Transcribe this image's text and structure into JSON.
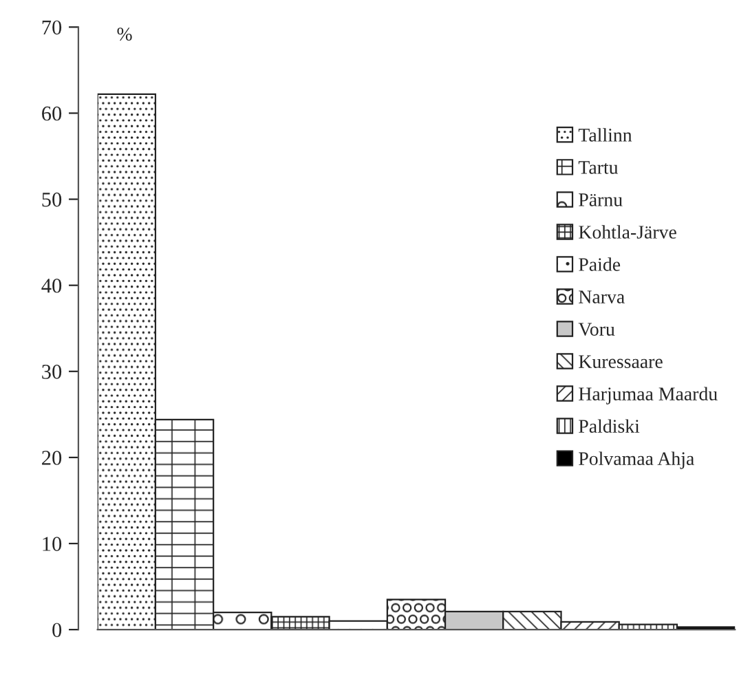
{
  "chart_data": {
    "type": "bar",
    "ylabel": "%",
    "categories": [
      null,
      null,
      null,
      null,
      null,
      null,
      null,
      null,
      null,
      null,
      null
    ],
    "series": [
      {
        "name": "Tallinn",
        "color": "#222222",
        "values": [
          62.2,
          null,
          null,
          null,
          null,
          null,
          null,
          null,
          null,
          null,
          null
        ]
      },
      {
        "name": "Tartu",
        "color": "#222222",
        "values": [
          null,
          24.4,
          null,
          null,
          null,
          null,
          null,
          null,
          null,
          null,
          null
        ]
      },
      {
        "name": "Pärnu",
        "color": "#222222",
        "values": [
          null,
          null,
          2.0,
          null,
          null,
          null,
          null,
          null,
          null,
          null,
          null
        ]
      },
      {
        "name": "Kohtla-Järve",
        "color": "#222222",
        "values": [
          null,
          null,
          null,
          1.5,
          null,
          null,
          null,
          null,
          null,
          null,
          null
        ]
      },
      {
        "name": "Paide",
        "color": "#222222",
        "values": [
          null,
          null,
          null,
          null,
          1.0,
          null,
          null,
          null,
          null,
          null,
          null
        ]
      },
      {
        "name": "Narva",
        "color": "#222222",
        "values": [
          null,
          null,
          null,
          null,
          null,
          3.5,
          null,
          null,
          null,
          null,
          null
        ]
      },
      {
        "name": "Voru",
        "color": "#c8c8c8",
        "values": [
          null,
          null,
          null,
          null,
          null,
          null,
          2.1,
          null,
          null,
          null,
          null
        ]
      },
      {
        "name": "Kuressaare",
        "color": "#222222",
        "values": [
          null,
          null,
          null,
          null,
          null,
          null,
          null,
          2.1,
          null,
          null,
          null
        ]
      },
      {
        "name": "Harjumaa Maardu",
        "color": "#222222",
        "values": [
          null,
          null,
          null,
          null,
          null,
          null,
          null,
          null,
          0.9,
          null,
          null
        ]
      },
      {
        "name": "Paldiski",
        "color": "#222222",
        "values": [
          null,
          null,
          null,
          null,
          null,
          null,
          null,
          null,
          null,
          0.6,
          null
        ]
      },
      {
        "name": "Polvamaa Ahja",
        "color": "#000000",
        "values": [
          null,
          null,
          null,
          null,
          null,
          null,
          null,
          null,
          null,
          null,
          0.3
        ]
      }
    ],
    "ylim": [
      0,
      70
    ],
    "yticks": [
      0,
      10,
      20,
      30,
      40,
      50,
      60,
      70
    ],
    "grid": false,
    "legend": "right"
  }
}
